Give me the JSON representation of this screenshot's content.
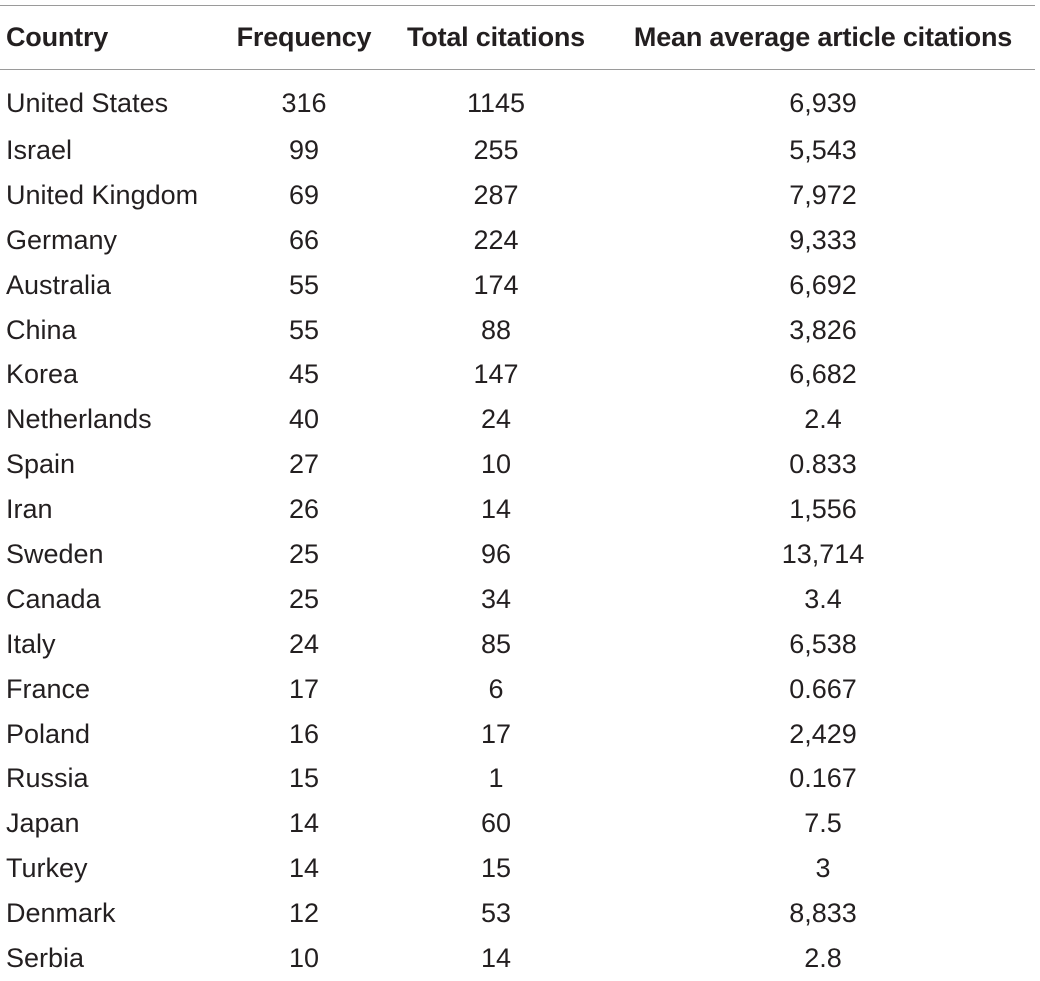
{
  "table": {
    "headers": {
      "country": "Country",
      "frequency": "Frequency",
      "total_citations": "Total citations",
      "mean_citations": "Mean average article citations"
    },
    "rows": [
      {
        "country": "United States",
        "frequency": "316",
        "total_citations": "1145",
        "mean_citations": "6,939"
      },
      {
        "country": "Israel",
        "frequency": "99",
        "total_citations": "255",
        "mean_citations": "5,543"
      },
      {
        "country": "United Kingdom",
        "frequency": "69",
        "total_citations": "287",
        "mean_citations": "7,972"
      },
      {
        "country": "Germany",
        "frequency": "66",
        "total_citations": "224",
        "mean_citations": "9,333"
      },
      {
        "country": "Australia",
        "frequency": "55",
        "total_citations": "174",
        "mean_citations": "6,692"
      },
      {
        "country": "China",
        "frequency": "55",
        "total_citations": "88",
        "mean_citations": "3,826"
      },
      {
        "country": "Korea",
        "frequency": "45",
        "total_citations": "147",
        "mean_citations": "6,682"
      },
      {
        "country": "Netherlands",
        "frequency": "40",
        "total_citations": "24",
        "mean_citations": "2.4"
      },
      {
        "country": "Spain",
        "frequency": "27",
        "total_citations": "10",
        "mean_citations": "0.833"
      },
      {
        "country": "Iran",
        "frequency": "26",
        "total_citations": "14",
        "mean_citations": "1,556"
      },
      {
        "country": "Sweden",
        "frequency": "25",
        "total_citations": "96",
        "mean_citations": "13,714"
      },
      {
        "country": "Canada",
        "frequency": "25",
        "total_citations": "34",
        "mean_citations": "3.4"
      },
      {
        "country": "Italy",
        "frequency": "24",
        "total_citations": "85",
        "mean_citations": "6,538"
      },
      {
        "country": "France",
        "frequency": "17",
        "total_citations": "6",
        "mean_citations": "0.667"
      },
      {
        "country": "Poland",
        "frequency": "16",
        "total_citations": "17",
        "mean_citations": "2,429"
      },
      {
        "country": "Russia",
        "frequency": "15",
        "total_citations": "1",
        "mean_citations": "0.167"
      },
      {
        "country": "Japan",
        "frequency": "14",
        "total_citations": "60",
        "mean_citations": "7.5"
      },
      {
        "country": "Turkey",
        "frequency": "14",
        "total_citations": "15",
        "mean_citations": "3"
      },
      {
        "country": "Denmark",
        "frequency": "12",
        "total_citations": "53",
        "mean_citations": "8,833"
      },
      {
        "country": "Serbia",
        "frequency": "10",
        "total_citations": "14",
        "mean_citations": "2.8"
      }
    ]
  }
}
